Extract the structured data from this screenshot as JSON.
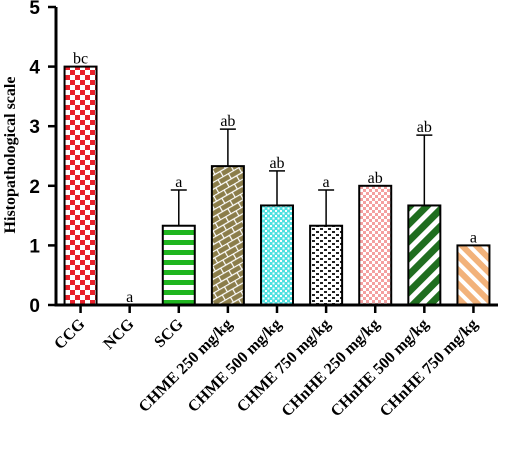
{
  "chart_data": {
    "type": "bar",
    "ylabel": "Histopathological scale",
    "xlabel": "",
    "ylim": [
      0,
      5
    ],
    "yticks": [
      "0",
      "1",
      "2",
      "3",
      "4",
      "5"
    ],
    "categories": [
      "CCG",
      "NCG",
      "SCG",
      "CHME 250 mg/kg",
      "CHME 500 mg/kg",
      "CHME 750 mg/kg",
      "CHnHE 250 mg/kg",
      "CHnHE 500 mg/kg",
      "CHnHE 750 mg/kg"
    ],
    "values": [
      4.0,
      0.0,
      1.33,
      2.33,
      1.67,
      1.33,
      2.0,
      1.67,
      1.0
    ],
    "error_upper": [
      0.0,
      0.0,
      0.6,
      0.62,
      0.58,
      0.6,
      0.0,
      1.18,
      0.0
    ],
    "significance": [
      "bc",
      "a",
      "a",
      "ab",
      "ab",
      "a",
      "ab",
      "ab",
      "a"
    ],
    "bar_colors": [
      "#e8202a",
      "#ffffff",
      "#1fb51f",
      "#8b7d4a",
      "#4de0e0",
      "#222222",
      "#f4a0a0",
      "#1f6e1f",
      "#f2b27a"
    ],
    "patterns": [
      "checker-large",
      "none",
      "horizontal-stripes",
      "brick",
      "dots",
      "bricks-small",
      "checker-small",
      "diagonal-stripes",
      "diagonal-stripes-reverse"
    ],
    "grid": false,
    "legend": "none"
  }
}
